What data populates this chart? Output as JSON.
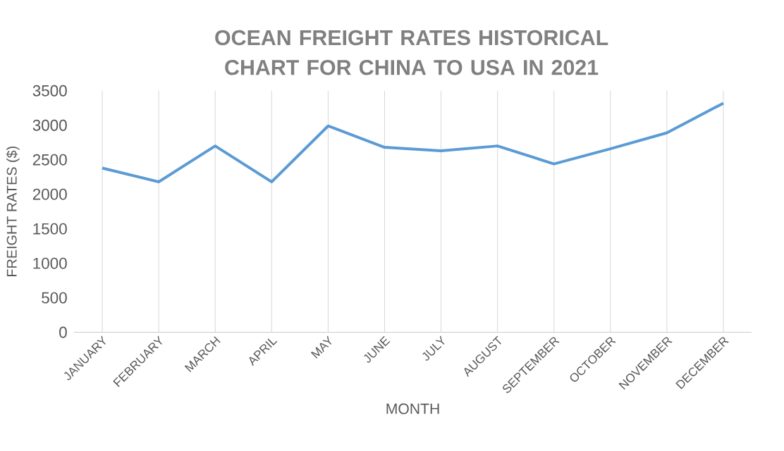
{
  "chart_data": {
    "type": "line",
    "title": "OCEAN FREIGHT RATES HISTORICAL CHART FOR CHINA TO USA IN 2021",
    "xlabel": "MONTH",
    "ylabel": "FREIGHT RATES ($)",
    "categories": [
      "JANUARY",
      "FEBRUARY",
      "MARCH",
      "APRIL",
      "MAY",
      "JUNE",
      "JULY",
      "AUGUST",
      "SEPTEMBER",
      "OCTOBER",
      "NOVEMBER",
      "DECEMBER"
    ],
    "series": [
      {
        "color": "#5b9bd5",
        "values": [
          2380,
          2180,
          2700,
          2180,
          2990,
          2680,
          2630,
          2700,
          2440,
          2660,
          2890,
          3320
        ]
      }
    ],
    "ylim": [
      0,
      3500
    ],
    "yticks": [
      0,
      500,
      1000,
      1500,
      2000,
      2500,
      3000,
      3500
    ],
    "grid": "x",
    "legend": false,
    "marker": "none",
    "line_style": "solid"
  }
}
